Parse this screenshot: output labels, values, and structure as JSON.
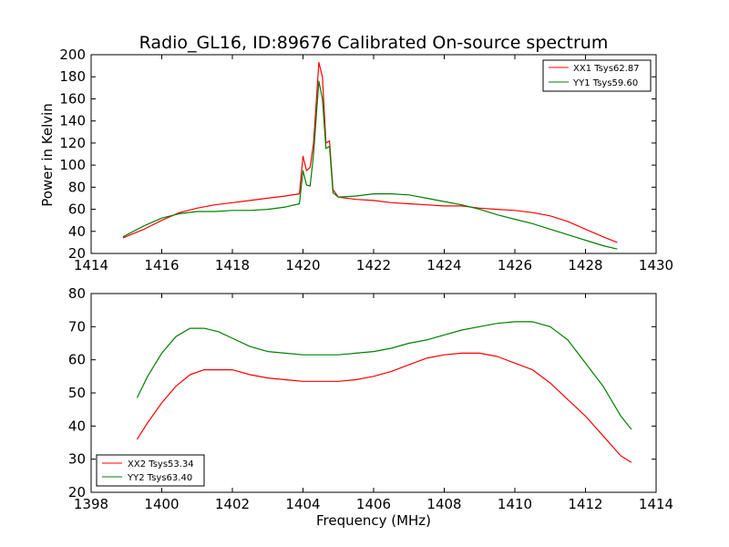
{
  "chart_data": [
    {
      "type": "line",
      "title": "Radio_GL16, ID:89676 Calibrated On-source spectrum",
      "xlabel": "",
      "ylabel": "Power in Kelvin",
      "xlim": [
        1414,
        1430
      ],
      "ylim": [
        20,
        200
      ],
      "xticks": [
        1414,
        1416,
        1418,
        1420,
        1422,
        1424,
        1426,
        1428,
        1430
      ],
      "yticks": [
        20,
        40,
        60,
        80,
        100,
        120,
        140,
        160,
        180,
        200
      ],
      "grid": false,
      "legend_position": "top-right",
      "series": [
        {
          "name": "XX1 Tsys62.87",
          "color": "#ff0000",
          "x": [
            1414.9,
            1415.5,
            1416.0,
            1416.5,
            1417.0,
            1417.5,
            1418.0,
            1418.5,
            1419.0,
            1419.5,
            1419.9,
            1420.0,
            1420.1,
            1420.2,
            1420.3,
            1420.45,
            1420.55,
            1420.65,
            1420.75,
            1420.85,
            1421.0,
            1421.5,
            1422.0,
            1422.5,
            1423.0,
            1423.5,
            1424.0,
            1424.5,
            1425.0,
            1425.5,
            1426.0,
            1426.5,
            1427.0,
            1427.5,
            1428.0,
            1428.5,
            1428.9
          ],
          "y": [
            34,
            42,
            50,
            57,
            61,
            64,
            66,
            68,
            70,
            72,
            74,
            108,
            95,
            98,
            120,
            193,
            180,
            120,
            122,
            78,
            71,
            69,
            68,
            66,
            65,
            64,
            63,
            63,
            61,
            60,
            59,
            57,
            54,
            49,
            42,
            35,
            30
          ]
        },
        {
          "name": "YY1 Tsys59.60",
          "color": "#008000",
          "x": [
            1414.9,
            1415.5,
            1416.0,
            1416.5,
            1417.0,
            1417.5,
            1418.0,
            1418.5,
            1419.0,
            1419.5,
            1419.9,
            1420.0,
            1420.1,
            1420.2,
            1420.3,
            1420.45,
            1420.55,
            1420.65,
            1420.75,
            1420.85,
            1421.0,
            1421.5,
            1422.0,
            1422.5,
            1423.0,
            1423.5,
            1424.0,
            1424.5,
            1425.0,
            1425.5,
            1426.0,
            1426.5,
            1427.0,
            1427.5,
            1428.0,
            1428.5,
            1428.9
          ],
          "y": [
            35,
            45,
            52,
            56,
            58,
            58,
            59,
            59,
            60,
            62,
            65,
            95,
            82,
            81,
            110,
            176,
            160,
            115,
            117,
            75,
            71,
            72,
            74,
            74,
            73,
            70,
            67,
            64,
            60,
            55,
            51,
            47,
            42,
            37,
            32,
            27,
            24
          ]
        }
      ]
    },
    {
      "type": "line",
      "title": "",
      "xlabel": "Frequency (MHz)",
      "ylabel": "",
      "xlim": [
        1398,
        1414
      ],
      "ylim": [
        20,
        80
      ],
      "xticks": [
        1398,
        1400,
        1402,
        1404,
        1406,
        1408,
        1410,
        1412,
        1414
      ],
      "yticks": [
        20,
        30,
        40,
        50,
        60,
        70,
        80
      ],
      "grid": false,
      "legend_position": "bottom-left",
      "series": [
        {
          "name": "XX2 Tsys53.34",
          "color": "#ff0000",
          "x": [
            1399.3,
            1399.6,
            1400.0,
            1400.4,
            1400.8,
            1401.2,
            1401.6,
            1402.0,
            1402.5,
            1403.0,
            1403.5,
            1404.0,
            1404.5,
            1405.0,
            1405.5,
            1406.0,
            1406.5,
            1407.0,
            1407.5,
            1408.0,
            1408.5,
            1409.0,
            1409.5,
            1410.0,
            1410.5,
            1411.0,
            1411.5,
            1412.0,
            1412.5,
            1413.0,
            1413.3
          ],
          "y": [
            36,
            41,
            47,
            52,
            55.5,
            57,
            57,
            57,
            55.5,
            54.5,
            54,
            53.5,
            53.5,
            53.5,
            54,
            55,
            56.5,
            58.5,
            60.5,
            61.5,
            62,
            62,
            61,
            59,
            57,
            53,
            48,
            43,
            37,
            31,
            29
          ]
        },
        {
          "name": "YY2 Tsys63.40",
          "color": "#008000",
          "x": [
            1399.3,
            1399.6,
            1400.0,
            1400.4,
            1400.8,
            1401.2,
            1401.6,
            1402.0,
            1402.5,
            1403.0,
            1403.5,
            1404.0,
            1404.5,
            1405.0,
            1405.5,
            1406.0,
            1406.5,
            1407.0,
            1407.5,
            1408.0,
            1408.5,
            1409.0,
            1409.5,
            1410.0,
            1410.5,
            1411.0,
            1411.5,
            1412.0,
            1412.5,
            1413.0,
            1413.3
          ],
          "y": [
            48.5,
            55,
            62,
            67,
            69.5,
            69.5,
            68.5,
            66.5,
            64,
            62.5,
            62,
            61.5,
            61.5,
            61.5,
            62,
            62.5,
            63.5,
            65,
            66,
            67.5,
            69,
            70,
            71,
            71.5,
            71.5,
            70,
            66,
            59,
            52,
            43,
            39
          ]
        }
      ]
    }
  ]
}
